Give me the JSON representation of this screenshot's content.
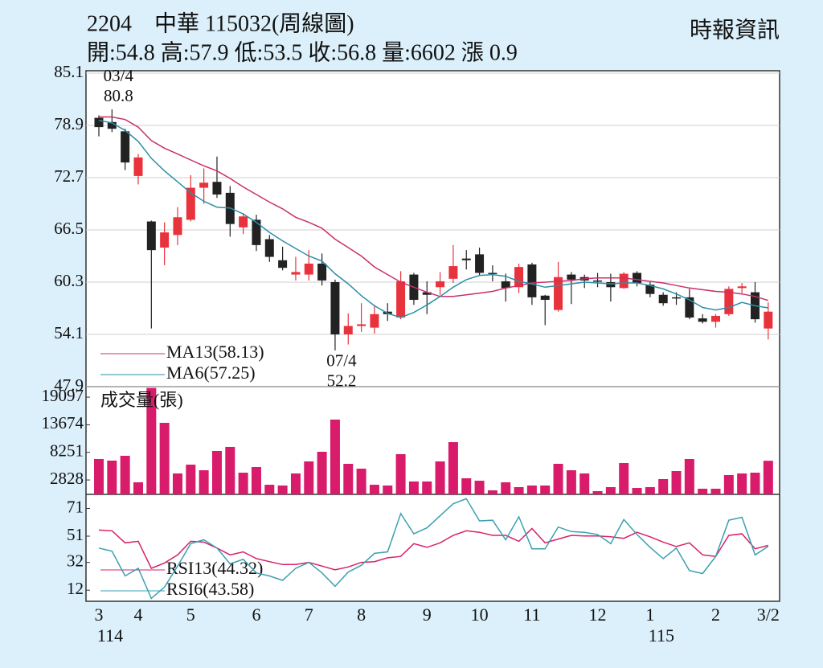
{
  "header": {
    "title": "2204　中華 115032(周線圖)",
    "quote": "開:54.8 高:57.9 低:53.5 收:56.8 量:6602 漲 0.9",
    "source": "時報資訊"
  },
  "chart_data": [
    {
      "type": "candlestick",
      "categories": [
        "3",
        null,
        null,
        "4",
        null,
        null,
        null,
        "5",
        null,
        null,
        null,
        null,
        "6",
        null,
        null,
        null,
        "7",
        null,
        null,
        null,
        "8",
        null,
        null,
        null,
        null,
        "9",
        null,
        null,
        null,
        "10",
        null,
        null,
        null,
        "11",
        null,
        null,
        null,
        null,
        "12",
        null,
        null,
        null,
        "1",
        null,
        null,
        null,
        null,
        "2",
        null,
        null,
        null,
        "3/2"
      ],
      "years": [
        "114",
        null,
        null,
        null,
        null,
        null,
        null,
        null,
        null,
        null,
        null,
        null,
        null,
        null,
        null,
        null,
        null,
        null,
        null,
        null,
        null,
        null,
        null,
        null,
        null,
        null,
        null,
        null,
        null,
        null,
        null,
        null,
        null,
        null,
        null,
        null,
        null,
        null,
        null,
        null,
        null,
        null,
        "115",
        null,
        null,
        null,
        null,
        null,
        null,
        null,
        null,
        null
      ],
      "open": [
        79.8,
        79.3,
        78.2,
        72.9,
        67.5,
        64.4,
        65.9,
        67.7,
        71.5,
        72.2,
        70.9,
        66.8,
        67.7,
        65.4,
        62.9,
        61.2,
        61.2,
        62.5,
        60.3,
        54.1,
        55.1,
        54.9,
        56.8,
        56.1,
        61.2,
        59.1,
        59.7,
        60.7,
        63.1,
        63.6,
        61.4,
        60.4,
        59.7,
        62.4,
        58.7,
        57.0,
        61.2,
        60.9,
        60.5,
        60.3,
        59.6,
        61.4,
        60.0,
        58.8,
        58.5,
        58.5,
        56.0,
        55.6,
        56.5,
        59.6,
        59.1,
        54.8
      ],
      "high": [
        80.1,
        80.8,
        78.5,
        75.5,
        67.6,
        67.4,
        69.2,
        73.0,
        73.8,
        75.2,
        71.7,
        68.5,
        68.3,
        65.9,
        64.5,
        63.3,
        64.1,
        63.7,
        60.6,
        56.6,
        57.8,
        57.6,
        57.8,
        61.6,
        61.4,
        60.4,
        61.5,
        64.7,
        64.1,
        64.4,
        62.3,
        61.3,
        62.5,
        62.6,
        58.8,
        62.7,
        61.5,
        61.2,
        61.4,
        61.3,
        61.5,
        61.6,
        60.3,
        59.1,
        59.1,
        59.5,
        56.5,
        56.5,
        59.8,
        60.2,
        60.3,
        57.9
      ],
      "low": [
        77.6,
        78.1,
        73.6,
        71.9,
        54.8,
        62.3,
        64.7,
        67.5,
        69.6,
        70.3,
        65.7,
        66.0,
        64.0,
        62.7,
        61.7,
        60.5,
        60.5,
        59.9,
        52.2,
        52.9,
        54.4,
        54.2,
        55.7,
        55.9,
        57.6,
        56.5,
        58.8,
        60.2,
        61.8,
        61.1,
        60.4,
        58.0,
        59.0,
        57.6,
        55.2,
        56.8,
        57.7,
        59.6,
        59.7,
        58.0,
        59.5,
        59.8,
        58.5,
        57.5,
        57.6,
        55.9,
        55.4,
        54.9,
        56.3,
        59.0,
        55.5,
        53.5
      ],
      "close": [
        78.7,
        78.5,
        74.5,
        75.1,
        64.1,
        66.2,
        68.0,
        71.5,
        72.1,
        70.7,
        67.2,
        68.1,
        64.7,
        63.3,
        62.0,
        61.5,
        62.5,
        60.5,
        54.1,
        55.1,
        55.3,
        56.5,
        56.5,
        60.4,
        58.2,
        58.8,
        60.4,
        62.2,
        62.9,
        61.4,
        61.3,
        59.6,
        62.1,
        58.5,
        58.2,
        60.9,
        60.6,
        60.5,
        60.4,
        59.7,
        61.3,
        60.2,
        58.9,
        57.8,
        58.4,
        56.1,
        55.6,
        56.3,
        59.5,
        59.8,
        55.9,
        56.8
      ],
      "up_color": "#e8323c",
      "down_color": "#222222",
      "series": [
        {
          "name": "MA13(58.13)",
          "color": "#c8306a",
          "values": [
            79.9,
            79.9,
            79.6,
            78.7,
            77.1,
            76.2,
            75.5,
            74.8,
            74.1,
            73.5,
            72.6,
            71.6,
            70.7,
            69.8,
            69.0,
            68.0,
            67.4,
            66.7,
            65.4,
            64.4,
            63.4,
            62.1,
            61.2,
            60.3,
            59.7,
            59.1,
            58.6,
            58.6,
            58.8,
            59.0,
            59.2,
            59.6,
            59.9,
            60.2,
            60.3,
            60.4,
            60.5,
            60.7,
            60.8,
            60.8,
            60.8,
            60.6,
            60.4,
            60.2,
            59.9,
            59.6,
            59.4,
            59.2,
            59.1,
            58.9,
            58.6,
            58.13
          ]
        },
        {
          "name": "MA6(57.25)",
          "color": "#2a8fa8",
          "values": [
            79.5,
            79.2,
            78.3,
            77.0,
            75.0,
            73.5,
            72.2,
            70.9,
            69.9,
            69.2,
            69.1,
            68.4,
            67.4,
            66.2,
            65.2,
            64.3,
            63.4,
            62.8,
            61.3,
            60.1,
            58.7,
            57.5,
            56.6,
            56.1,
            56.7,
            57.6,
            58.6,
            59.7,
            60.6,
            61.1,
            61.2,
            61.0,
            60.4,
            60.1,
            59.7,
            59.9,
            60.1,
            60.3,
            60.2,
            60.1,
            60.2,
            60.2,
            59.9,
            59.5,
            58.9,
            58.2,
            57.3,
            57.0,
            57.3,
            57.9,
            57.5,
            57.25
          ]
        }
      ],
      "annotations": [
        {
          "date": "03/4",
          "value": 80.8
        },
        {
          "date": "07/4",
          "value": 52.2
        }
      ],
      "ylim": [
        47.9,
        85.1
      ],
      "yticks": [
        85.1,
        78.9,
        72.7,
        66.5,
        60.3,
        54.1,
        47.9
      ],
      "grid": true
    },
    {
      "type": "bar",
      "title": "成交量(張)",
      "color": "#d81b6a",
      "values": [
        6950,
        6630,
        7580,
        2370,
        20900,
        14050,
        4110,
        5840,
        4740,
        8530,
        9320,
        4260,
        5370,
        1890,
        1740,
        4110,
        6470,
        8370,
        14690,
        6000,
        5050,
        1890,
        1740,
        7900,
        2530,
        2530,
        6470,
        10260,
        3160,
        2680,
        790,
        2370,
        1420,
        1740,
        1740,
        6000,
        4740,
        4110,
        630,
        1420,
        6160,
        1260,
        1420,
        3000,
        4580,
        6950,
        1110,
        1110,
        3790,
        4110,
        4260,
        6602
      ],
      "ylim": [
        0,
        21000
      ],
      "yticks": [
        19097,
        13674,
        8251,
        2828
      ],
      "grid": false
    },
    {
      "type": "line",
      "series": [
        {
          "name": "RSI13(44.32)",
          "color": "#d8206a",
          "values": [
            55.4,
            54.9,
            46.2,
            47.3,
            27.8,
            31.6,
            37.5,
            47.3,
            46.7,
            42.4,
            37.5,
            39.7,
            34.8,
            32.6,
            30.5,
            30.5,
            32.1,
            29.4,
            26.7,
            28.8,
            32.1,
            32.6,
            35.4,
            36.4,
            45.6,
            42.9,
            46.2,
            51.6,
            54.9,
            53.8,
            51.6,
            51.6,
            47.3,
            56.5,
            46.2,
            48.9,
            51.6,
            51.1,
            51.1,
            50.5,
            49.4,
            53.8,
            50.5,
            46.7,
            43.5,
            46.2,
            37.5,
            36.4,
            51.6,
            52.7,
            41.9,
            44.32
          ]
        },
        {
          "name": "RSI6(43.58)",
          "color": "#3aa0b0",
          "values": [
            42.4,
            40.2,
            22.3,
            27.8,
            6.1,
            14.2,
            29.4,
            45.6,
            48.4,
            42.4,
            31.0,
            34.3,
            24.5,
            22.3,
            19.1,
            27.8,
            32.1,
            24.5,
            14.8,
            25.1,
            30.0,
            38.6,
            39.7,
            67.3,
            52.7,
            57.0,
            65.7,
            74.4,
            78.0,
            62.0,
            62.5,
            48.4,
            65.0,
            41.9,
            41.9,
            57.6,
            54.3,
            53.8,
            52.2,
            45.6,
            63.0,
            52.2,
            42.9,
            34.8,
            42.4,
            26.1,
            24.0,
            36.4,
            62.5,
            64.6,
            37.5,
            43.58
          ]
        }
      ],
      "ylim": [
        4,
        80
      ],
      "yticks": [
        71,
        51,
        32,
        12
      ],
      "grid": false
    }
  ]
}
